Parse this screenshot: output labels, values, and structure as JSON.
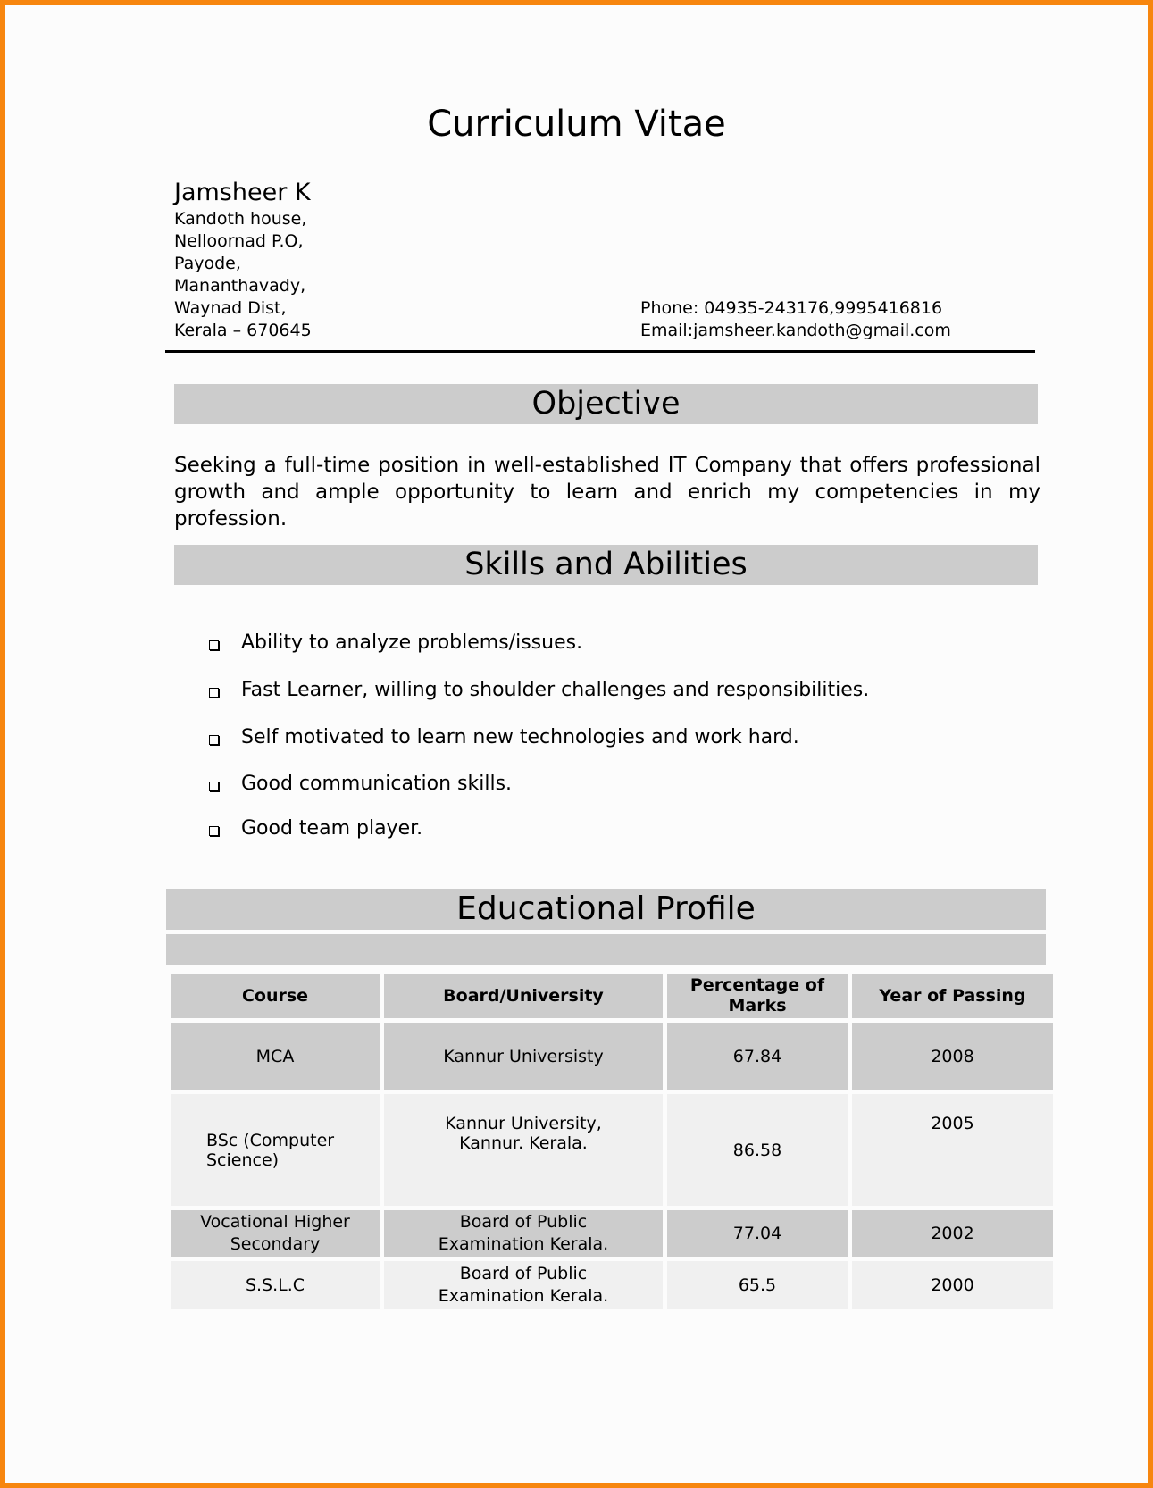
{
  "title": "Curriculum Vitae",
  "name": "Jamsheer K",
  "address": [
    "Kandoth house,",
    "Nelloornad P.O,",
    "Payode,",
    "Mananthavady,",
    "Waynad Dist,",
    "Kerala – 670645"
  ],
  "phone": "Phone: 04935-243176,9995416816",
  "email": "Email:jamsheer.kandoth@gmail.com",
  "objective": {
    "heading": "Objective",
    "text": "Seeking a full-time position in well-established IT Company that offers professional growth and ample opportunity to learn and enrich my competencies in my profession."
  },
  "skills": {
    "heading": "Skills and Abilities",
    "items": [
      "Ability to analyze problems/issues.",
      "Fast Learner, willing to shoulder challenges and responsibilities.",
      "Self motivated to learn new technologies and work hard.",
      "Good communication skills.",
      "Good team player."
    ]
  },
  "education": {
    "heading": "Educational Profile",
    "columns": [
      "Course",
      "Board/University",
      "Percentage of Marks",
      "Year of Passing"
    ],
    "rows": [
      [
        "MCA",
        "Kannur Universisty",
        "67.84",
        "2008"
      ],
      [
        "BSc (Computer Science)",
        "Kannur University, Kannur. Kerala.",
        "86.58",
        "2005"
      ],
      [
        "Vocational Higher Secondary",
        "Board of Public Examination Kerala.",
        "77.04",
        "2002"
      ],
      [
        "S.S.L.C",
        "Board of Public Examination Kerala.",
        "65.5",
        "2000"
      ]
    ]
  },
  "colors": {
    "border": "#f7860f",
    "section_bar": "#cccccc",
    "light_row": "#f0f0f0"
  }
}
